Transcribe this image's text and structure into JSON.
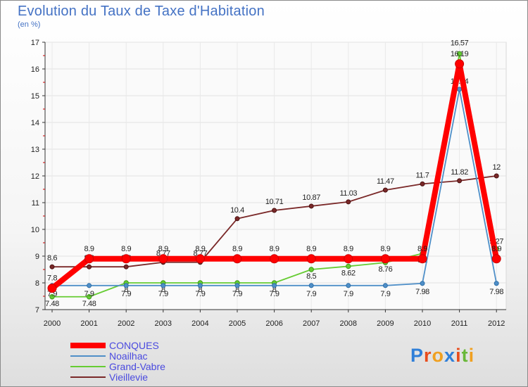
{
  "title": "Evolution du Taux de Taxe d'Habitation",
  "subtitle": "(en %)",
  "logo": {
    "letters": [
      "P",
      "r",
      "o",
      "x",
      "i",
      "t",
      "i"
    ]
  },
  "chart_data": {
    "type": "line",
    "title": "Evolution du Taux de Taxe d'Habitation",
    "ylabel": "(en %)",
    "xlabel": "",
    "ylim": [
      7,
      17
    ],
    "y_ticks": [
      "7",
      "8",
      "9",
      "10",
      "11",
      "12",
      "13",
      "14",
      "15",
      "16",
      "17"
    ],
    "x": [
      "2000",
      "2001",
      "2002",
      "2003",
      "2004",
      "2005",
      "2006",
      "2007",
      "2008",
      "2009",
      "2010",
      "2011",
      "2012"
    ],
    "series": [
      {
        "name": "CONQUES",
        "color": "#ff0000",
        "values": [
          7.8,
          8.9,
          8.9,
          8.9,
          8.9,
          8.9,
          8.9,
          8.9,
          8.9,
          8.9,
          8.9,
          16.19,
          8.9
        ],
        "labels": [
          "7.8",
          "8.9",
          "8.9",
          "8.9",
          "8.9",
          "8.9",
          "8.9",
          "8.9",
          "8.9",
          "8.9",
          "8.9",
          "16.19",
          "8.9"
        ]
      },
      {
        "name": "Noailhac",
        "color": "#4f8fc8",
        "values": [
          7.9,
          7.9,
          7.9,
          7.9,
          7.9,
          7.9,
          7.9,
          7.9,
          7.9,
          7.9,
          7.98,
          15.24,
          7.98
        ],
        "labels": [
          "7.9",
          "7.9",
          "7.9",
          "7.9",
          "7.9",
          "7.9",
          "7.9",
          "7.9",
          "7.9",
          "7.9",
          "7.98",
          "15.24",
          "7.98"
        ]
      },
      {
        "name": "Grand-Vabre",
        "color": "#66cc33",
        "values": [
          7.48,
          7.48,
          8,
          8,
          8,
          8,
          8,
          8.5,
          8.62,
          8.76,
          9.1,
          16.57,
          9.27
        ],
        "labels": [
          "7.48",
          "7.48",
          "8",
          "8",
          "8",
          "8",
          "8",
          "8.5",
          "8.62",
          "8.76",
          "9.1",
          "16.57",
          "9.27"
        ]
      },
      {
        "name": "Vieillevie",
        "color": "#7a2828",
        "values": [
          8.6,
          8.6,
          8.6,
          8.77,
          8.77,
          10.4,
          10.71,
          10.87,
          11.03,
          11.47,
          11.7,
          11.82,
          12
        ],
        "labels": [
          "8.6",
          "8.6",
          "8.6",
          "8.77",
          "8.77",
          "10.4",
          "10.71",
          "10.87",
          "11.03",
          "11.47",
          "11.7",
          "11.82",
          "12"
        ]
      }
    ],
    "legend": {
      "position": "bottom-left",
      "items": [
        "CONQUES",
        "Noailhac",
        "Grand-Vabre",
        "Vieillevie"
      ]
    }
  }
}
